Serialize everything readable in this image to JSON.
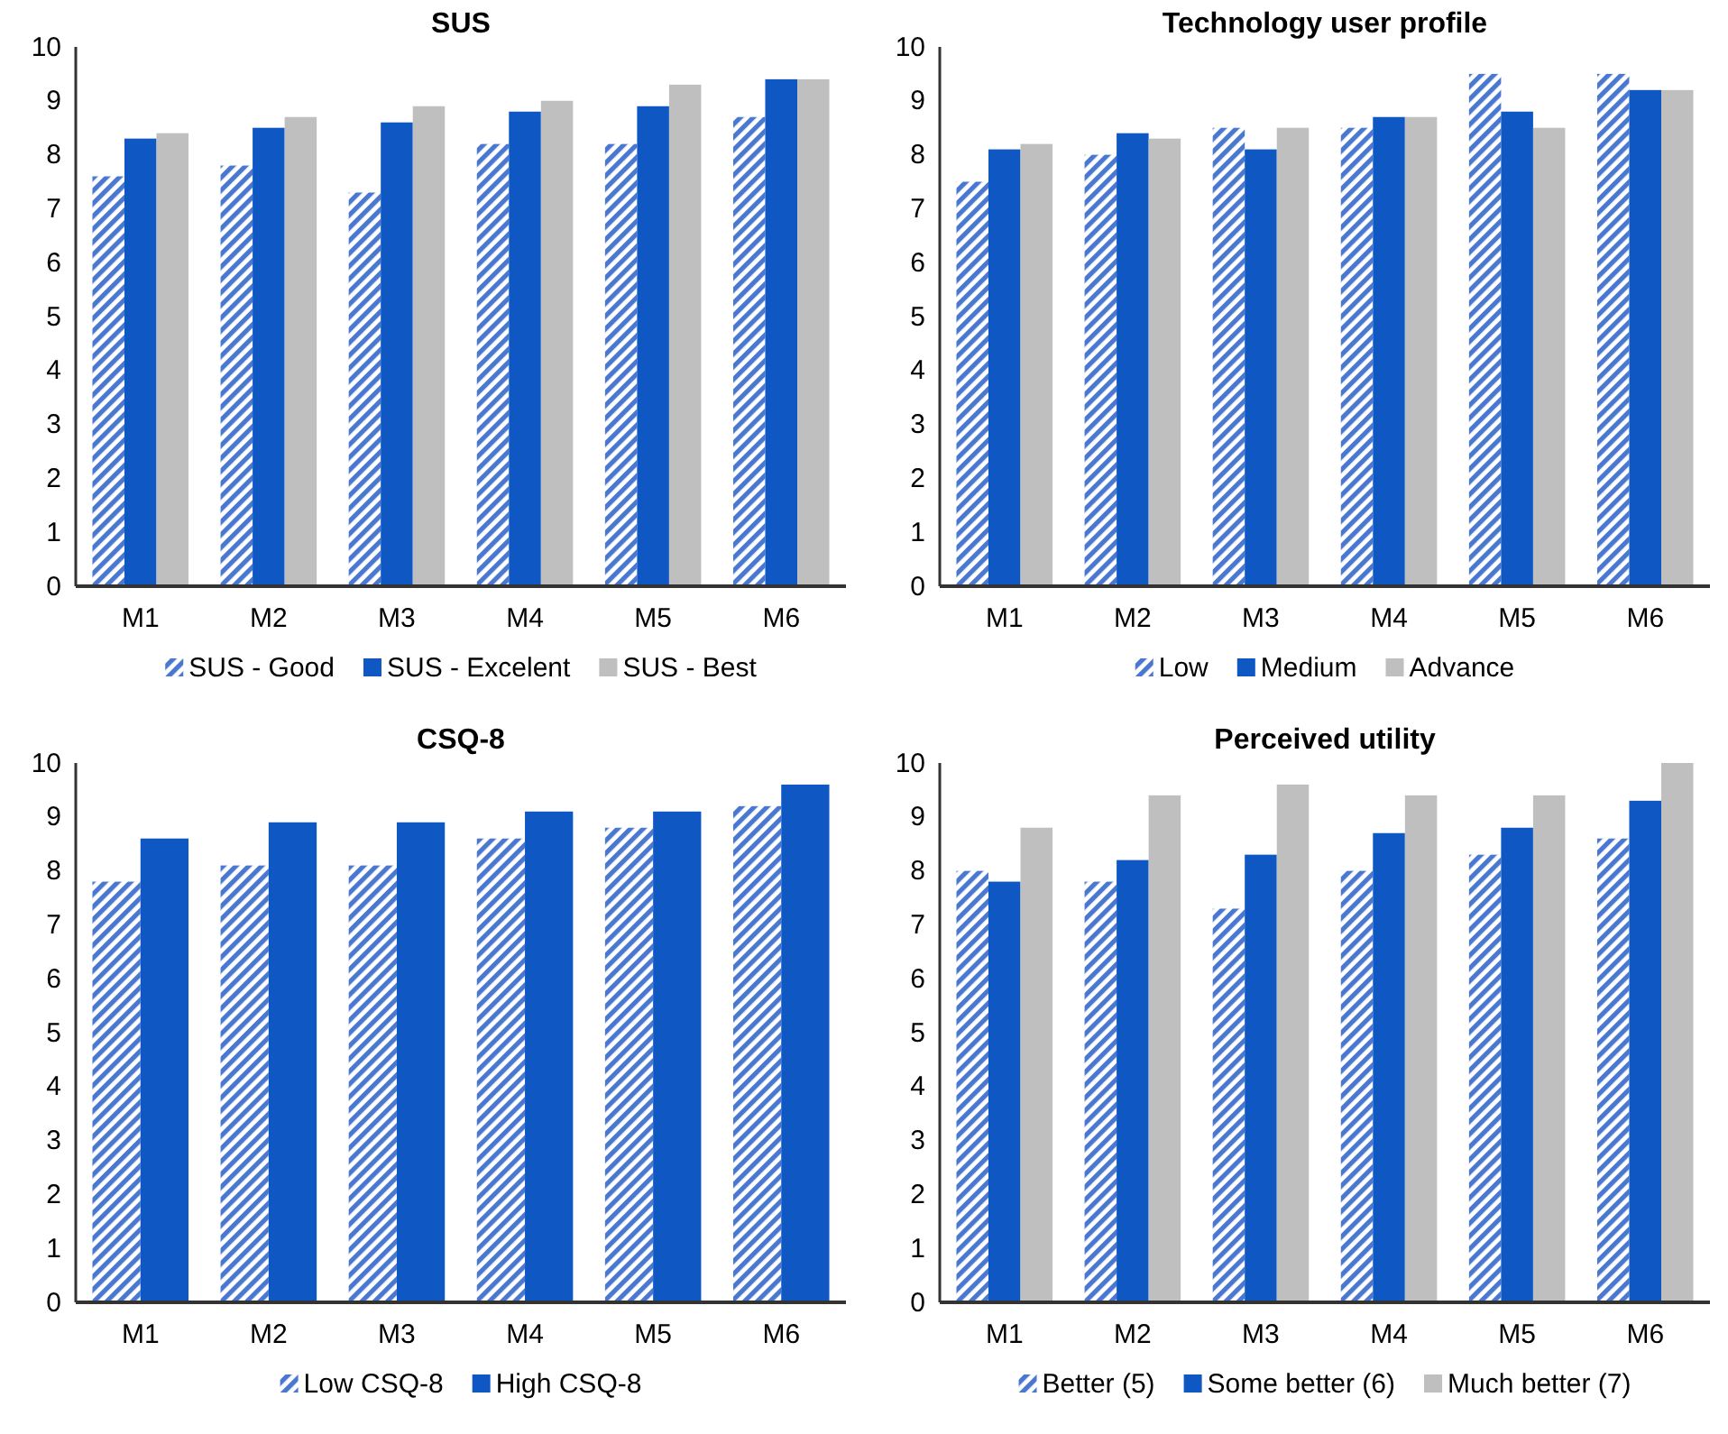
{
  "chart_data": [
    {
      "type": "bar",
      "title": "SUS",
      "categories": [
        "M1",
        "M2",
        "M3",
        "M4",
        "M5",
        "M6"
      ],
      "series": [
        {
          "name": "SUS - Good",
          "color": "#4a78d0",
          "values": [
            7.6,
            7.8,
            7.3,
            8.2,
            8.2,
            8.7
          ]
        },
        {
          "name": "SUS - Excelent",
          "color": "#0f57c2",
          "values": [
            8.3,
            8.5,
            8.6,
            8.8,
            8.9,
            9.4
          ]
        },
        {
          "name": "SUS - Best",
          "color": "#bfbfbf",
          "values": [
            8.4,
            8.7,
            8.9,
            9.0,
            9.3,
            9.4
          ]
        }
      ],
      "ylim": [
        0,
        10
      ],
      "yticks": [
        0,
        1,
        2,
        3,
        4,
        5,
        6,
        7,
        8,
        9,
        10
      ],
      "grid": false,
      "legend": "bottom"
    },
    {
      "type": "bar",
      "title": "Technology user profile",
      "categories": [
        "M1",
        "M2",
        "M3",
        "M4",
        "M5",
        "M6"
      ],
      "series": [
        {
          "name": "Low",
          "color": "#4a78d0",
          "values": [
            7.5,
            8.0,
            8.5,
            8.5,
            9.5,
            9.5
          ]
        },
        {
          "name": "Medium",
          "color": "#0f57c2",
          "values": [
            8.1,
            8.4,
            8.1,
            8.7,
            8.8,
            9.2
          ]
        },
        {
          "name": "Advance",
          "color": "#bfbfbf",
          "values": [
            8.2,
            8.3,
            8.5,
            8.7,
            8.5,
            9.2
          ]
        }
      ],
      "ylim": [
        0,
        10
      ],
      "yticks": [
        0,
        1,
        2,
        3,
        4,
        5,
        6,
        7,
        8,
        9,
        10
      ],
      "grid": false,
      "legend": "bottom"
    },
    {
      "type": "bar",
      "title": "CSQ-8",
      "categories": [
        "M1",
        "M2",
        "M3",
        "M4",
        "M5",
        "M6"
      ],
      "series": [
        {
          "name": "Low CSQ-8",
          "color": "#4a78d0",
          "values": [
            7.8,
            8.1,
            8.1,
            8.6,
            8.8,
            9.2
          ]
        },
        {
          "name": "High CSQ-8",
          "color": "#0f57c2",
          "values": [
            8.6,
            8.9,
            8.9,
            9.1,
            9.1,
            9.6
          ]
        }
      ],
      "ylim": [
        0,
        10
      ],
      "yticks": [
        0,
        1,
        2,
        3,
        4,
        5,
        6,
        7,
        8,
        9,
        10
      ],
      "grid": false,
      "legend": "bottom"
    },
    {
      "type": "bar",
      "title": "Perceived utility",
      "categories": [
        "M1",
        "M2",
        "M3",
        "M4",
        "M5",
        "M6"
      ],
      "series": [
        {
          "name": "Better (5)",
          "color": "#4a78d0",
          "values": [
            8.0,
            7.8,
            7.3,
            8.0,
            8.3,
            8.6
          ]
        },
        {
          "name": "Some better (6)",
          "color": "#0f57c2",
          "values": [
            7.8,
            8.2,
            8.3,
            8.7,
            8.8,
            9.3
          ]
        },
        {
          "name": "Much better (7)",
          "color": "#bfbfbf",
          "values": [
            8.8,
            9.4,
            9.6,
            9.4,
            9.4,
            10.0
          ]
        }
      ],
      "ylim": [
        0,
        10
      ],
      "yticks": [
        0,
        1,
        2,
        3,
        4,
        5,
        6,
        7,
        8,
        9,
        10
      ],
      "grid": false,
      "legend": "bottom"
    }
  ]
}
